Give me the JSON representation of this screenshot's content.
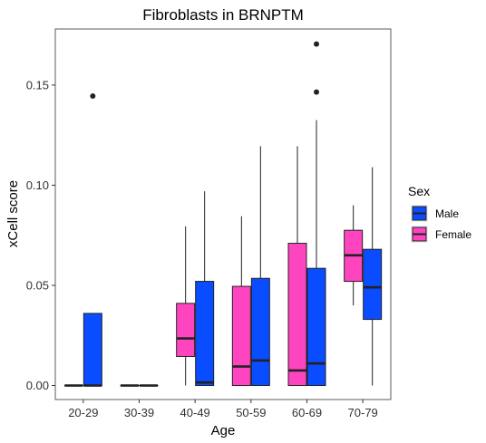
{
  "chart_data": {
    "type": "boxplot",
    "title": "Fibroblasts in BRNPTM",
    "xlabel": "Age",
    "ylabel": "xCell score",
    "categories": [
      "20-29",
      "30-39",
      "40-49",
      "50-59",
      "60-69",
      "70-79"
    ],
    "ylim": [
      -0.007,
      0.178
    ],
    "yticks": [
      0.0,
      0.05,
      0.1,
      0.15
    ],
    "ytick_labels": [
      "0.00",
      "0.05",
      "0.10",
      "0.15"
    ],
    "grid": false,
    "legend": {
      "title": "Sex",
      "placement": "right",
      "entries": [
        "Male",
        "Female"
      ]
    },
    "colors": {
      "Female": "#ff44c0",
      "Male": "#0a4cff",
      "outline": "#222222",
      "outlier": "#222222"
    },
    "series": [
      {
        "name": "Female",
        "boxes": [
          {
            "category": "20-29",
            "min": 0.0,
            "q1": 0.0,
            "median": 0.0,
            "q3": 0.0,
            "max": 0.0,
            "outliers": []
          },
          {
            "category": "30-39",
            "min": 0.0,
            "q1": 0.0,
            "median": 0.0,
            "q3": 0.0,
            "max": 0.0,
            "outliers": []
          },
          {
            "category": "40-49",
            "min": 0.0,
            "q1": 0.0145,
            "median": 0.0235,
            "q3": 0.041,
            "max": 0.0795,
            "outliers": []
          },
          {
            "category": "50-59",
            "min": 0.0,
            "q1": 0.0,
            "median": 0.0095,
            "q3": 0.0495,
            "max": 0.0845,
            "outliers": []
          },
          {
            "category": "60-69",
            "min": 0.0,
            "q1": 0.0,
            "median": 0.0075,
            "q3": 0.071,
            "max": 0.1195,
            "outliers": []
          },
          {
            "category": "70-79",
            "min": 0.04,
            "q1": 0.052,
            "median": 0.065,
            "q3": 0.0775,
            "max": 0.09,
            "outliers": []
          }
        ]
      },
      {
        "name": "Male",
        "boxes": [
          {
            "category": "20-29",
            "min": 0.0,
            "q1": 0.0,
            "median": 0.0,
            "q3": 0.036,
            "max": 0.036,
            "outliers": [
              0.1445
            ]
          },
          {
            "category": "30-39",
            "min": 0.0,
            "q1": 0.0,
            "median": 0.0,
            "q3": 0.0,
            "max": 0.0,
            "outliers": []
          },
          {
            "category": "40-49",
            "min": 0.0,
            "q1": 0.0,
            "median": 0.0015,
            "q3": 0.052,
            "max": 0.097,
            "outliers": []
          },
          {
            "category": "50-59",
            "min": 0.0,
            "q1": 0.0,
            "median": 0.0125,
            "q3": 0.0535,
            "max": 0.1195,
            "outliers": []
          },
          {
            "category": "60-69",
            "min": 0.0,
            "q1": 0.0,
            "median": 0.011,
            "q3": 0.0585,
            "max": 0.1325,
            "outliers": [
              0.1465,
              0.1705
            ]
          },
          {
            "category": "70-79",
            "min": 0.0,
            "q1": 0.033,
            "median": 0.049,
            "q3": 0.068,
            "max": 0.109,
            "outliers": []
          }
        ]
      }
    ]
  }
}
